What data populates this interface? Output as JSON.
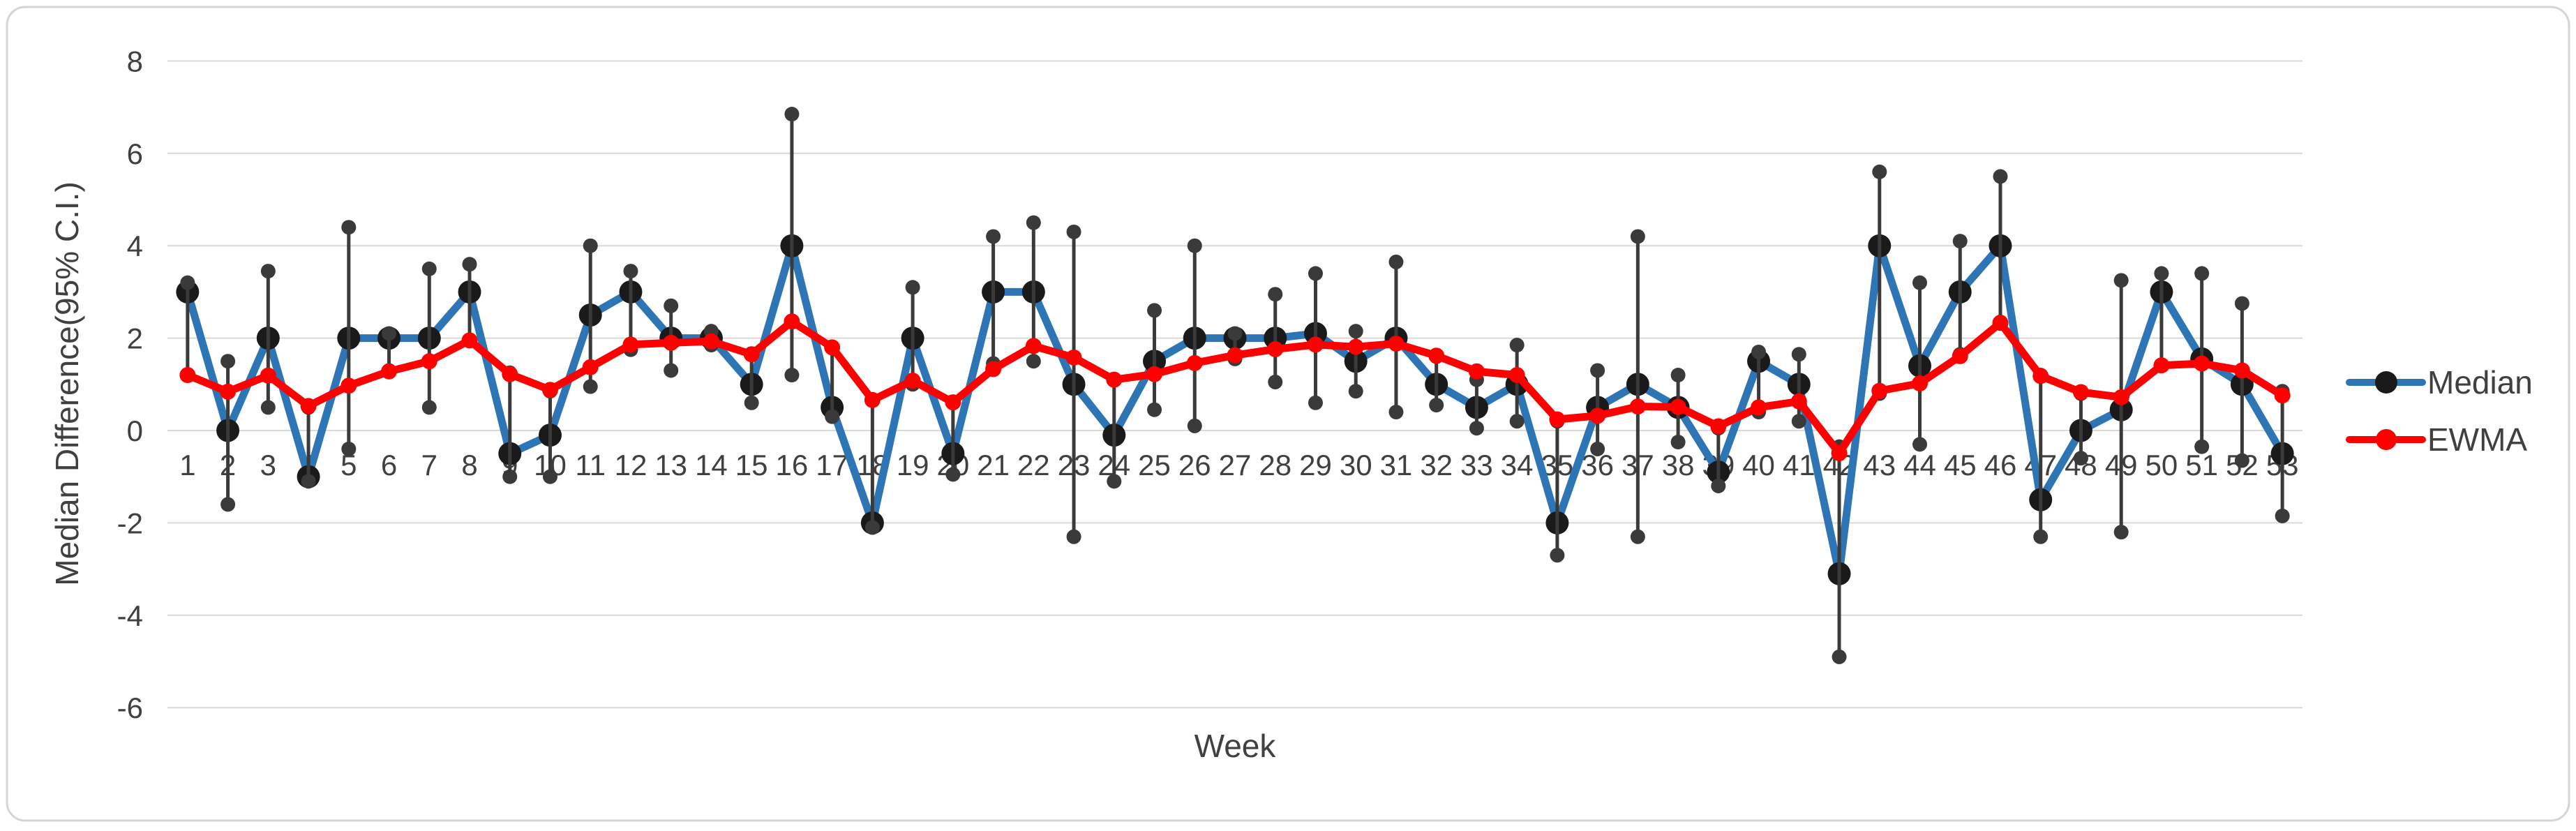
{
  "chart_data": {
    "type": "line",
    "title": "",
    "xlabel": "Week",
    "ylabel": "Median Difference(95% C.I.)",
    "ylim": [
      -6,
      8
    ],
    "ytick_step": 2,
    "yticks": [
      8,
      6,
      4,
      2,
      0,
      -2,
      -4,
      -6
    ],
    "grid": "horizontal",
    "legend_position": "right",
    "categories": [
      1,
      2,
      3,
      4,
      5,
      6,
      7,
      8,
      9,
      10,
      11,
      12,
      13,
      14,
      15,
      16,
      17,
      18,
      19,
      20,
      21,
      22,
      23,
      24,
      25,
      26,
      27,
      28,
      29,
      30,
      31,
      32,
      33,
      34,
      35,
      36,
      37,
      38,
      39,
      40,
      41,
      42,
      43,
      44,
      45,
      46,
      47,
      48,
      49,
      50,
      51,
      52,
      53
    ],
    "series": [
      {
        "name": "Median",
        "line_color": "#2E75B6",
        "marker_color": "#1A1A1A",
        "values": [
          3,
          0,
          2,
          -1,
          2,
          2,
          2,
          3,
          -0.5,
          -0.1,
          2.5,
          3,
          2,
          2,
          1,
          4,
          0.5,
          -2,
          2,
          -0.5,
          3,
          3,
          1,
          -0.1,
          1.5,
          2,
          2,
          2,
          2.1,
          1.5,
          2,
          1,
          0.5,
          1,
          -2,
          0.5,
          1,
          0.5,
          -0.9,
          1.5,
          1,
          -3.1,
          4,
          1.4,
          3,
          4,
          -1.5,
          0,
          0.45,
          3,
          1.55,
          1,
          -0.5
        ],
        "ci_low": [
          1.2,
          -1.6,
          0.5,
          -1.1,
          -0.4,
          1.3,
          0.5,
          1.95,
          -1.0,
          -1.0,
          0.95,
          1.75,
          1.3,
          1.85,
          0.6,
          1.2,
          0.3,
          -2.1,
          1.0,
          -0.95,
          1.45,
          1.5,
          -2.3,
          -1.1,
          0.45,
          0.1,
          1.55,
          1.05,
          0.6,
          0.85,
          0.4,
          0.55,
          0.05,
          0.2,
          -2.7,
          -0.4,
          -2.3,
          -0.25,
          -1.2,
          0.4,
          0.2,
          -4.9,
          0.8,
          -0.3,
          1.65,
          2.35,
          -2.3,
          -0.6,
          -2.2,
          1.4,
          -0.35,
          -0.65,
          -1.85
        ],
        "ci_high": [
          3.2,
          1.5,
          3.45,
          0.5,
          4.4,
          2.1,
          3.5,
          3.6,
          1.25,
          0.85,
          4.0,
          3.45,
          2.7,
          2.15,
          1.65,
          6.85,
          1.8,
          0.65,
          3.1,
          0.6,
          4.2,
          4.5,
          4.3,
          1.1,
          2.6,
          4.0,
          2.1,
          2.95,
          3.4,
          2.15,
          3.65,
          1.6,
          1.1,
          1.85,
          0.2,
          1.3,
          4.2,
          1.2,
          0.05,
          1.7,
          1.65,
          -0.35,
          5.6,
          3.2,
          4.1,
          5.5,
          1.2,
          0.8,
          3.25,
          3.4,
          3.4,
          2.75,
          0.85
        ]
      },
      {
        "name": "EWMA",
        "line_color": "#FE0000",
        "marker_color": "#FE0000",
        "values": [
          1.2,
          0.84,
          1.19,
          0.53,
          0.97,
          1.28,
          1.5,
          1.95,
          1.22,
          0.88,
          1.37,
          1.86,
          1.9,
          1.93,
          1.65,
          2.36,
          1.8,
          0.66,
          1.08,
          0.61,
          1.33,
          1.83,
          1.58,
          1.1,
          1.22,
          1.46,
          1.63,
          1.76,
          1.86,
          1.81,
          1.88,
          1.62,
          1.28,
          1.2,
          0.24,
          0.32,
          0.52,
          0.51,
          0.09,
          0.5,
          0.63,
          -0.49,
          0.86,
          1.02,
          1.61,
          2.33,
          1.18,
          0.83,
          0.72,
          1.41,
          1.45,
          1.3,
          0.76
        ]
      }
    ],
    "error_bar_color": "#3A3A3A",
    "gridline_color": "#D9D9D9",
    "text_color": "#404040",
    "border_color": "#D5D5D5"
  }
}
